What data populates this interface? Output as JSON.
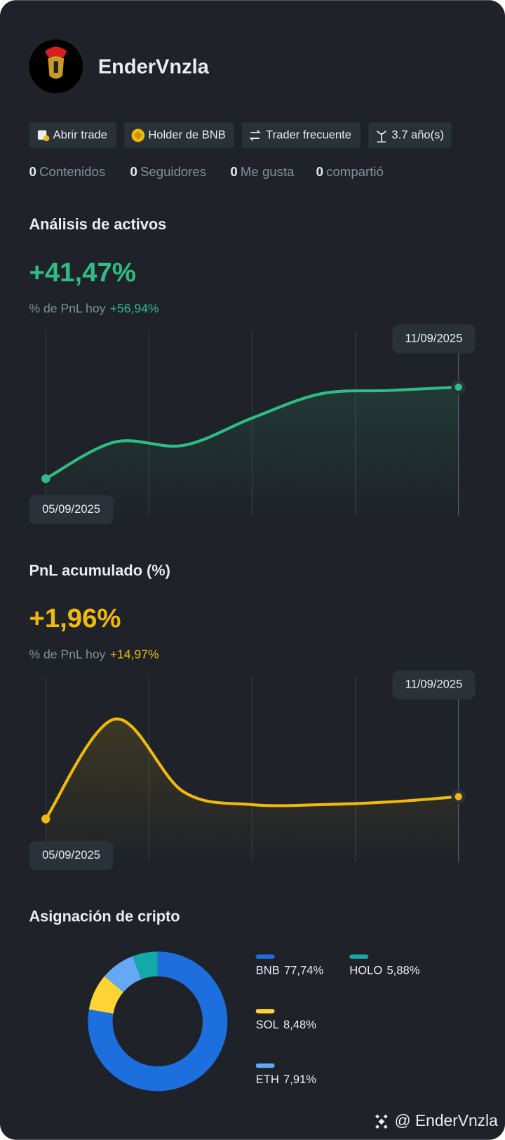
{
  "profile": {
    "name": "EnderVnzla"
  },
  "badges": [
    "Abrir trade",
    "Holder de BNB",
    "Trader frecuente",
    "3.7 año(s)"
  ],
  "stats": [
    {
      "value": 0,
      "label": "Contenidos"
    },
    {
      "value": 0,
      "label": "Seguidores"
    },
    {
      "value": 0,
      "label": "Me gusta"
    },
    {
      "value": 0,
      "label": "compartió"
    }
  ],
  "chart_data": [
    {
      "type": "line",
      "title": "Análisis de activos",
      "headline": "+41,47%",
      "subtitle": "% de PnL hoy",
      "subtitle_value": "+56,94%",
      "categories": [
        "05/09/2025",
        null,
        null,
        null,
        null,
        null,
        "11/09/2025"
      ],
      "values": [
        0,
        16.6,
        15.1,
        27.5,
        38.5,
        40.0,
        41.5
      ],
      "color": "#2ebd85",
      "ylim": [
        -17,
        67
      ]
    },
    {
      "type": "line",
      "title": "PnL acumulado (%)",
      "headline": "+1,96%",
      "subtitle": "% de PnL hoy",
      "subtitle_value": "+14,97%",
      "categories": [
        "05/09/2025",
        null,
        null,
        null,
        null,
        null,
        "11/09/2025"
      ],
      "values": [
        0,
        8.78,
        2.4,
        1.26,
        1.26,
        1.5,
        1.96
      ],
      "color": "#f0b90b",
      "ylim": [
        -3.8,
        12.5
      ]
    },
    {
      "type": "donut",
      "title": "Asignación de cripto",
      "categories": [
        "BNB",
        "SOL",
        "ETH",
        "HOLO"
      ],
      "values": [
        77.74,
        8.48,
        7.91,
        5.88
      ],
      "value_labels": [
        "77,74%",
        "8,48%",
        "7,91%",
        "5,88%"
      ],
      "colors": [
        "#1e6fde",
        "#fcd535",
        "#64a8f6",
        "#14a8a8"
      ]
    }
  ],
  "footer": "@ EnderVnzla"
}
